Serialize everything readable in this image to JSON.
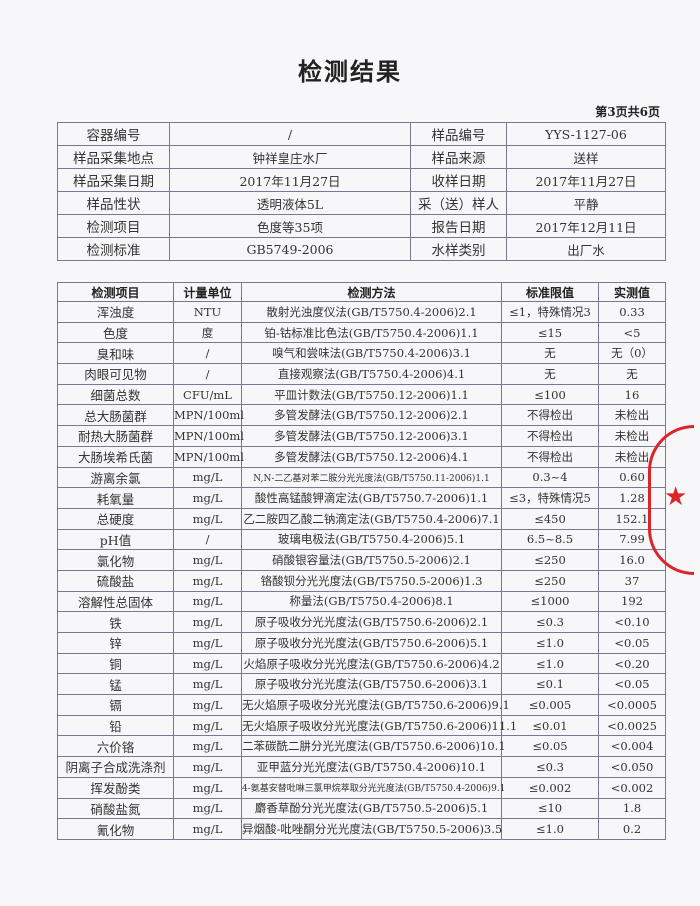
{
  "title": "检测结果",
  "page_indicator": "第3页共6页",
  "info": [
    {
      "l1": "容器编号",
      "v1": "/",
      "l2": "样品编号",
      "v2": "YYS-1127-06"
    },
    {
      "l1": "样品采集地点",
      "v1": "钟祥皇庄水厂",
      "l2": "样品来源",
      "v2": "送样"
    },
    {
      "l1": "样品采集日期",
      "v1": "2017年11月27日",
      "l2": "收样日期",
      "v2": "2017年11月27日"
    },
    {
      "l1": "样品性状",
      "v1": "透明液体5L",
      "l2": "采（送）样人",
      "v2": "平静"
    },
    {
      "l1": "检测项目",
      "v1": "色度等35项",
      "l2": "报告日期",
      "v2": "2017年12月11日"
    },
    {
      "l1": "检测标准",
      "v1": "GB5749-2006",
      "l2": "水样类别",
      "v2": "出厂水"
    }
  ],
  "results": {
    "headers": [
      "检测项目",
      "计量单位",
      "检测方法",
      "标准限值",
      "实测值"
    ],
    "rows": [
      [
        "浑浊度",
        "NTU",
        "散射光浊度仪法(GB/T5750.4-2006)2.1",
        "≤1，特殊情况3",
        "0.33"
      ],
      [
        "色度",
        "度",
        "铂-钴标准比色法(GB/T5750.4-2006)1.1",
        "≤15",
        "<5"
      ],
      [
        "臭和味",
        "/",
        "嗅气和尝味法(GB/T5750.4-2006)3.1",
        "无",
        "无（0）"
      ],
      [
        "肉眼可见物",
        "/",
        "直接观察法(GB/T5750.4-2006)4.1",
        "无",
        "无"
      ],
      [
        "细菌总数",
        "CFU/mL",
        "平皿计数法(GB/T5750.12-2006)1.1",
        "≤100",
        "16"
      ],
      [
        "总大肠菌群",
        "MPN/100ml",
        "多管发酵法(GB/T5750.12-2006)2.1",
        "不得检出",
        "未检出"
      ],
      [
        "耐热大肠菌群",
        "MPN/100ml",
        "多管发酵法(GB/T5750.12-2006)3.1",
        "不得检出",
        "未检出"
      ],
      [
        "大肠埃希氏菌",
        "MPN/100ml",
        "多管发酵法(GB/T5750.12-2006)4.1",
        "不得检出",
        "未检出"
      ],
      [
        "游离余氯",
        "mg/L",
        "N,N-二乙基对苯二胺分光光度法(GB/T5750.11-2006)1.1",
        "0.3~4",
        "0.60"
      ],
      [
        "耗氧量",
        "mg/L",
        "酸性高锰酸钾滴定法(GB/T5750.7-2006)1.1",
        "≤3，特殊情况5",
        "1.28"
      ],
      [
        "总硬度",
        "mg/L",
        "乙二胺四乙酸二钠滴定法(GB/T5750.4-2006)7.1",
        "≤450",
        "152.1"
      ],
      [
        "pH值",
        "/",
        "玻璃电极法(GB/T5750.4-2006)5.1",
        "6.5~8.5",
        "7.99"
      ],
      [
        "氯化物",
        "mg/L",
        "硝酸银容量法(GB/T5750.5-2006)2.1",
        "≤250",
        "16.0"
      ],
      [
        "硫酸盐",
        "mg/L",
        "铬酸钡分光光度法(GB/T5750.5-2006)1.3",
        "≤250",
        "37"
      ],
      [
        "溶解性总固体",
        "mg/L",
        "称量法(GB/T5750.4-2006)8.1",
        "≤1000",
        "192"
      ],
      [
        "铁",
        "mg/L",
        "原子吸收分光光度法(GB/T5750.6-2006)2.1",
        "≤0.3",
        "<0.10"
      ],
      [
        "锌",
        "mg/L",
        "原子吸收分光光度法(GB/T5750.6-2006)5.1",
        "≤1.0",
        "<0.05"
      ],
      [
        "铜",
        "mg/L",
        "火焰原子吸收分光光度法(GB/T5750.6-2006)4.2",
        "≤1.0",
        "<0.20"
      ],
      [
        "锰",
        "mg/L",
        "原子吸收分光光度法(GB/T5750.6-2006)3.1",
        "≤0.1",
        "<0.05"
      ],
      [
        "镉",
        "mg/L",
        "无火焰原子吸收分光光度法(GB/T5750.6-2006)9.1",
        "≤0.005",
        "<0.0005"
      ],
      [
        "铅",
        "mg/L",
        "无火焰原子吸收分光光度法(GB/T5750.6-2006)11.1",
        "≤0.01",
        "<0.0025"
      ],
      [
        "六价铬",
        "mg/L",
        "二苯碳酰二肼分光光度法(GB/T5750.6-2006)10.1",
        "≤0.05",
        "<0.004"
      ],
      [
        "阴离子合成洗涤剂",
        "mg/L",
        "亚甲蓝分光光度法(GB/T5750.4-2006)10.1",
        "≤0.3",
        "<0.050"
      ],
      [
        "挥发酚类",
        "mg/L",
        "4-氨基安替吡啉三氯甲烷萃取分光光度法(GB/T5750.4-2006)9.1",
        "≤0.002",
        "<0.002"
      ],
      [
        "硝酸盐氮",
        "mg/L",
        "麝香草酚分光光度法(GB/T5750.5-2006)5.1",
        "≤10",
        "1.8"
      ],
      [
        "氰化物",
        "mg/L",
        "异烟酸-吡唑酮分光光度法(GB/T5750.5-2006)3.5",
        "≤1.0",
        "0.2"
      ]
    ]
  },
  "stamp": {
    "color": "#d8262b"
  }
}
